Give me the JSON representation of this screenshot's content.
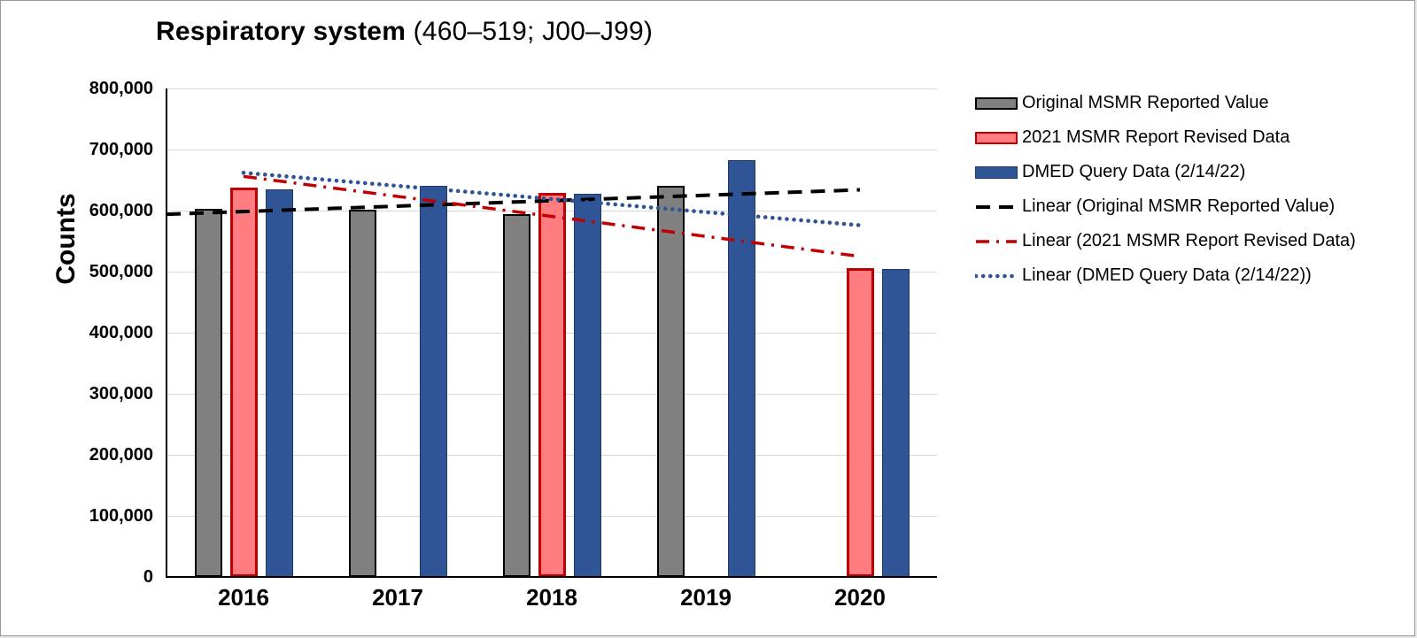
{
  "chart_data": {
    "type": "bar",
    "title_bold": "Respiratory system",
    "title_rest": " (460–519; J00–J99)",
    "title": "Respiratory system (460–519; J00–J99)",
    "ylabel": "Counts",
    "categories": [
      "2016",
      "2017",
      "2018",
      "2019",
      "2020"
    ],
    "series": [
      {
        "name": "Original MSMR Reported Value",
        "color": "#808080",
        "border": "#000000",
        "border_px": 2.5,
        "values": [
          603000,
          602000,
          594000,
          641000,
          null
        ]
      },
      {
        "name": "2021 MSMR Report Revised Data",
        "color": "#FF7C80",
        "border": "#C00000",
        "border_px": 3,
        "values": [
          637000,
          null,
          629000,
          null,
          506000
        ]
      },
      {
        "name": "DMED Query Data (2/14/22)",
        "color": "#2F5597",
        "border": "#1F3864",
        "border_px": 1.5,
        "values": [
          635000,
          640000,
          628000,
          683000,
          505000
        ]
      }
    ],
    "trendlines": [
      {
        "name": "Linear (Original MSMR Reported Value)",
        "color": "#000000",
        "style": "dashed",
        "x_start": 2015.5,
        "x_end": 2020,
        "y_start": 594000,
        "y_end": 634000
      },
      {
        "name": "Linear (2021 MSMR Report Revised Data)",
        "color": "#C00000",
        "style": "dash-dot",
        "x_start": 2016,
        "x_end": 2020,
        "y_start": 656000,
        "y_end": 525000
      },
      {
        "name": "Linear (DMED Query Data (2/14/22))",
        "color": "#2F5597",
        "style": "dotted",
        "x_start": 2016,
        "x_end": 2020,
        "y_start": 662000,
        "y_end": 576000
      }
    ],
    "ylim": [
      0,
      800000
    ],
    "ytick_step": 100000,
    "grid": true,
    "gridline_color": "#d9d9d9",
    "legend_position": "right"
  }
}
